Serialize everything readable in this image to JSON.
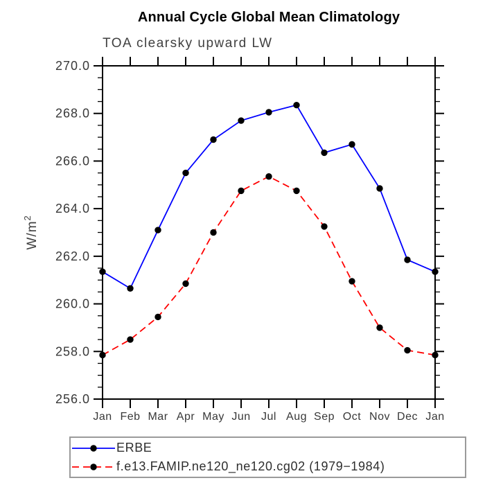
{
  "header": {
    "title": "Annual Cycle Global Mean Climatology",
    "subtitle": "TOA clearsky upward LW"
  },
  "colors": {
    "erbe_line": "#0000ff",
    "model_line": "#ff0000",
    "marker": "#000000",
    "axis": "#000000",
    "tick_text": "#383838",
    "legend_border": "#9a9a9a"
  },
  "chart_data": {
    "type": "line",
    "title": "Annual Cycle Global Mean Climatology",
    "subtitle": "TOA clearsky upward LW",
    "ylabel": "W/m²",
    "ylabel_base": "W/m",
    "ylabel_sup": "2",
    "xlabel": "",
    "x_categories": [
      "Jan",
      "Feb",
      "Mar",
      "Apr",
      "May",
      "Jun",
      "Jul",
      "Aug",
      "Sep",
      "Oct",
      "Nov",
      "Dec",
      "Jan"
    ],
    "ylim": [
      256.0,
      270.0
    ],
    "ytick_step": 2.0,
    "yminor_step": 0.5,
    "ytick_labels": [
      "270.0",
      "268.0",
      "266.0",
      "264.0",
      "262.0",
      "260.0",
      "258.0",
      "256.0"
    ],
    "grid": false,
    "legend_position": "below-left-box",
    "series": [
      {
        "name": "ERBE",
        "color": "#0000ff",
        "style": "solid",
        "marker": "circle",
        "marker_color": "#000000",
        "values": [
          261.35,
          260.65,
          263.1,
          265.5,
          266.9,
          267.7,
          268.05,
          268.35,
          266.35,
          266.7,
          264.85,
          261.85,
          261.35
        ]
      },
      {
        "name": "f.e13.FAMIP.ne120_ne120.cg02 (1979−1984)",
        "color": "#ff0000",
        "style": "dashed",
        "marker": "circle",
        "marker_color": "#000000",
        "values": [
          257.85,
          258.5,
          259.45,
          260.85,
          263.0,
          264.75,
          265.35,
          264.75,
          263.25,
          260.95,
          259.0,
          258.05,
          257.85
        ]
      }
    ]
  }
}
